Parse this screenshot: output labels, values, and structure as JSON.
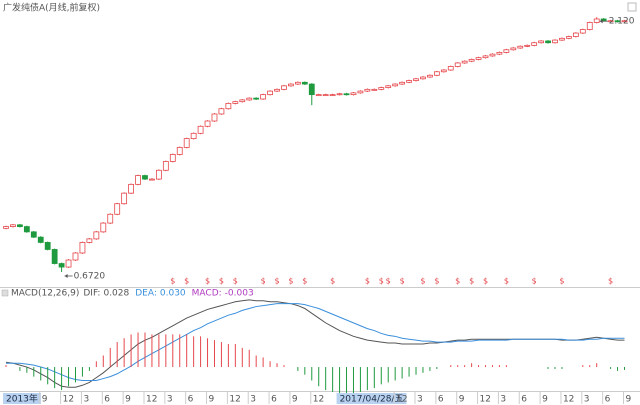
{
  "chart_data": {
    "type": "candlestick",
    "title": "广发纯债A(月线,前复权)",
    "categories": [
      "2013年",
      null,
      null,
      null,
      null,
      "9",
      null,
      null,
      "12",
      null,
      null,
      "3",
      null,
      null,
      "6",
      null,
      null,
      "9",
      null,
      null,
      "12",
      null,
      null,
      "3",
      null,
      null,
      "6",
      null,
      null,
      "9",
      null,
      null,
      "12",
      null,
      null,
      "3",
      null,
      null,
      "6",
      null,
      null,
      "9",
      null,
      null,
      "12",
      null,
      null,
      null,
      "2017/04/28/五",
      null,
      null,
      null,
      null,
      null,
      null,
      null,
      "12",
      null,
      null,
      "3",
      null,
      null,
      "6",
      null,
      null,
      "9",
      null,
      null,
      "12",
      null,
      null,
      "3",
      null,
      null,
      "6",
      null,
      null,
      "9",
      null,
      null,
      "12",
      null,
      null,
      "3",
      null,
      null,
      "6",
      null,
      null,
      "9"
    ],
    "open": [
      0.92,
      0.93,
      0.94,
      0.93,
      0.9,
      0.87,
      0.84,
      0.8,
      0.72,
      0.7,
      0.74,
      0.78,
      0.84,
      0.86,
      0.9,
      0.95,
      1.0,
      1.06,
      1.12,
      1.17,
      1.22,
      1.2,
      1.2,
      1.25,
      1.3,
      1.34,
      1.38,
      1.43,
      1.46,
      1.5,
      1.53,
      1.57,
      1.6,
      1.63,
      1.64,
      1.65,
      1.66,
      1.655,
      1.68,
      1.7,
      1.71,
      1.73,
      1.74,
      1.75,
      1.74,
      1.68,
      1.68,
      1.68,
      1.68,
      1.685,
      1.68,
      1.69,
      1.7,
      1.71,
      1.71,
      1.72,
      1.73,
      1.74,
      1.75,
      1.76,
      1.77,
      1.78,
      1.79,
      1.81,
      1.82,
      1.84,
      1.86,
      1.87,
      1.88,
      1.89,
      1.9,
      1.91,
      1.92,
      1.935,
      1.945,
      1.955,
      1.96,
      1.975,
      1.985,
      1.975,
      1.99,
      2.0,
      2.01,
      2.03,
      2.05,
      2.09,
      2.11,
      2.1,
      2.1,
      2.095
    ],
    "high": [
      0.935,
      0.945,
      0.945,
      0.935,
      0.905,
      0.875,
      0.845,
      0.805,
      0.725,
      0.745,
      0.785,
      0.845,
      0.865,
      0.905,
      0.955,
      1.005,
      1.065,
      1.125,
      1.175,
      1.225,
      1.225,
      1.205,
      1.255,
      1.305,
      1.345,
      1.385,
      1.435,
      1.465,
      1.505,
      1.535,
      1.575,
      1.605,
      1.635,
      1.645,
      1.655,
      1.665,
      1.665,
      1.685,
      1.705,
      1.715,
      1.735,
      1.745,
      1.755,
      1.755,
      1.745,
      1.685,
      1.685,
      1.685,
      1.69,
      1.69,
      1.695,
      1.705,
      1.715,
      1.715,
      1.725,
      1.735,
      1.745,
      1.755,
      1.765,
      1.775,
      1.785,
      1.795,
      1.815,
      1.825,
      1.845,
      1.865,
      1.875,
      1.885,
      1.895,
      1.905,
      1.915,
      1.925,
      1.94,
      1.95,
      1.96,
      1.965,
      1.98,
      1.99,
      1.99,
      1.995,
      2.005,
      2.015,
      2.035,
      2.055,
      2.095,
      2.12,
      2.115,
      2.105,
      2.105,
      2.105
    ],
    "low": [
      0.915,
      0.925,
      0.925,
      0.895,
      0.865,
      0.835,
      0.795,
      0.715,
      0.672,
      0.695,
      0.735,
      0.775,
      0.835,
      0.855,
      0.895,
      0.945,
      0.995,
      1.055,
      1.115,
      1.165,
      1.195,
      1.195,
      1.195,
      1.245,
      1.295,
      1.335,
      1.375,
      1.425,
      1.455,
      1.495,
      1.525,
      1.565,
      1.595,
      1.625,
      1.635,
      1.645,
      1.65,
      1.65,
      1.675,
      1.695,
      1.705,
      1.725,
      1.735,
      1.735,
      1.62,
      1.675,
      1.675,
      1.675,
      1.675,
      1.675,
      1.675,
      1.685,
      1.695,
      1.705,
      1.705,
      1.715,
      1.725,
      1.735,
      1.745,
      1.755,
      1.765,
      1.775,
      1.785,
      1.805,
      1.815,
      1.835,
      1.855,
      1.865,
      1.875,
      1.885,
      1.895,
      1.905,
      1.915,
      1.93,
      1.94,
      1.95,
      1.955,
      1.97,
      1.97,
      1.97,
      1.985,
      1.995,
      2.005,
      2.025,
      2.045,
      2.085,
      2.095,
      2.095,
      2.09,
      2.09
    ],
    "close": [
      0.93,
      0.94,
      0.93,
      0.9,
      0.87,
      0.84,
      0.8,
      0.72,
      0.7,
      0.74,
      0.78,
      0.84,
      0.86,
      0.9,
      0.95,
      1.0,
      1.06,
      1.12,
      1.17,
      1.22,
      1.2,
      1.2,
      1.25,
      1.3,
      1.34,
      1.38,
      1.43,
      1.46,
      1.5,
      1.53,
      1.57,
      1.6,
      1.63,
      1.64,
      1.65,
      1.66,
      1.655,
      1.68,
      1.7,
      1.71,
      1.73,
      1.74,
      1.75,
      1.74,
      1.68,
      1.68,
      1.68,
      1.68,
      1.685,
      1.68,
      1.69,
      1.7,
      1.71,
      1.71,
      1.72,
      1.73,
      1.74,
      1.75,
      1.76,
      1.77,
      1.78,
      1.79,
      1.81,
      1.82,
      1.84,
      1.86,
      1.87,
      1.88,
      1.89,
      1.9,
      1.91,
      1.92,
      1.935,
      1.945,
      1.955,
      1.96,
      1.975,
      1.985,
      1.975,
      1.99,
      2.0,
      2.01,
      2.03,
      2.05,
      2.09,
      2.11,
      2.1,
      2.1,
      2.095,
      2.1
    ],
    "up_color": "#e5474b",
    "down_color": "#1f9a3e",
    "ylim": [
      0.598,
      2.161
    ],
    "annotations": [
      {
        "value": 0.672,
        "label": "0.6720"
      },
      {
        "value": 2.12,
        "label": "2.120"
      }
    ],
    "dividend_color": "#e5474b",
    "dividend": [
      null,
      null,
      null,
      null,
      null,
      null,
      null,
      null,
      null,
      null,
      null,
      null,
      null,
      null,
      null,
      null,
      null,
      null,
      null,
      null,
      null,
      null,
      null,
      null,
      "$",
      null,
      "$",
      null,
      null,
      "$",
      null,
      "$",
      null,
      "$",
      null,
      null,
      null,
      "$",
      null,
      "$",
      null,
      "$",
      null,
      "$",
      null,
      null,
      null,
      "$",
      null,
      null,
      null,
      null,
      "$",
      null,
      "$",
      "$",
      null,
      "$",
      null,
      null,
      "$",
      null,
      "$",
      null,
      null,
      "$",
      null,
      "$",
      null,
      "$",
      null,
      null,
      "$",
      null,
      null,
      null,
      "$",
      null,
      null,
      null,
      "$",
      null,
      null,
      null,
      null,
      null,
      null,
      "$",
      null,
      null
    ],
    "macd": {
      "title": "MACD(12,26,9)",
      "ylim": [
        -0.026,
        0.074
      ],
      "series": [
        {
          "name": "DIF:",
          "color": "#555555",
          "last_label": "0.028",
          "values": [
            0.005,
            0.004,
            0.002,
            0,
            -0.003,
            -0.007,
            -0.011,
            -0.016,
            -0.02,
            -0.021,
            -0.021,
            -0.019,
            -0.016,
            -0.011,
            -0.006,
            0,
            0.006,
            0.012,
            0.018,
            0.024,
            0.028,
            0.031,
            0.035,
            0.039,
            0.043,
            0.047,
            0.051,
            0.054,
            0.057,
            0.06,
            0.062,
            0.064,
            0.066,
            0.068,
            0.069,
            0.07,
            0.069,
            0.069,
            0.068,
            0.068,
            0.067,
            0.066,
            0.064,
            0.061,
            0.056,
            0.051,
            0.046,
            0.042,
            0.038,
            0.035,
            0.032,
            0.03,
            0.028,
            0.027,
            0.026,
            0.025,
            0.025,
            0.024,
            0.024,
            0.024,
            0.024,
            0.025,
            0.025,
            0.026,
            0.027,
            0.028,
            0.028,
            0.029,
            0.029,
            0.029,
            0.029,
            0.029,
            0.029,
            0.029,
            0.029,
            0.029,
            0.029,
            0.029,
            0.029,
            0.029,
            0.028,
            0.028,
            0.028,
            0.029,
            0.03,
            0.031,
            0.03,
            0.029,
            0.028,
            0.028
          ]
        },
        {
          "name": "DEA:",
          "color": "#3a8fdc",
          "last_label": "0.030",
          "values": [
            0.004,
            0.004,
            0.004,
            0.003,
            0.002,
            0,
            -0.002,
            -0.005,
            -0.008,
            -0.011,
            -0.013,
            -0.014,
            -0.014,
            -0.014,
            -0.012,
            -0.01,
            -0.007,
            -0.003,
            0.001,
            0.006,
            0.01,
            0.014,
            0.018,
            0.022,
            0.026,
            0.03,
            0.034,
            0.038,
            0.041,
            0.045,
            0.048,
            0.051,
            0.054,
            0.056,
            0.059,
            0.061,
            0.063,
            0.064,
            0.065,
            0.066,
            0.066,
            0.066,
            0.066,
            0.065,
            0.063,
            0.061,
            0.058,
            0.055,
            0.052,
            0.049,
            0.046,
            0.043,
            0.04,
            0.038,
            0.035,
            0.033,
            0.032,
            0.03,
            0.029,
            0.028,
            0.027,
            0.027,
            0.026,
            0.026,
            0.026,
            0.027,
            0.027,
            0.027,
            0.028,
            0.028,
            0.028,
            0.028,
            0.028,
            0.029,
            0.029,
            0.029,
            0.029,
            0.029,
            0.029,
            0.029,
            0.029,
            0.028,
            0.028,
            0.028,
            0.029,
            0.029,
            0.03,
            0.03,
            0.03,
            0.03
          ]
        },
        {
          "name": "MACD:",
          "color": "#b03cc0",
          "type": "bar",
          "last_label": "-0.003",
          "values": [
            0.002,
            0,
            -0.004,
            -0.006,
            -0.01,
            -0.014,
            -0.018,
            -0.022,
            -0.024,
            -0.02,
            -0.016,
            -0.01,
            -0.004,
            0.006,
            0.012,
            0.02,
            0.026,
            0.03,
            0.034,
            0.036,
            0.036,
            0.034,
            0.034,
            0.034,
            0.034,
            0.034,
            0.034,
            0.032,
            0.032,
            0.03,
            0.028,
            0.026,
            0.024,
            0.024,
            0.02,
            0.018,
            0.012,
            0.01,
            0.006,
            0.004,
            0.002,
            0,
            -0.004,
            -0.008,
            -0.014,
            -0.02,
            -0.024,
            -0.026,
            -0.028,
            -0.028,
            -0.028,
            -0.026,
            -0.024,
            -0.022,
            -0.018,
            -0.016,
            -0.014,
            -0.012,
            -0.01,
            -0.008,
            -0.006,
            -0.004,
            -0.002,
            0,
            0.002,
            0.002,
            0.002,
            0.004,
            0.002,
            0.002,
            0.002,
            0.002,
            0.002,
            0,
            0,
            0,
            0,
            0,
            -0.002,
            -0.002,
            -0.002,
            0,
            0,
            0.002,
            0.002,
            0.004,
            0,
            -0.002,
            -0.004,
            -0.003
          ]
        }
      ]
    }
  }
}
